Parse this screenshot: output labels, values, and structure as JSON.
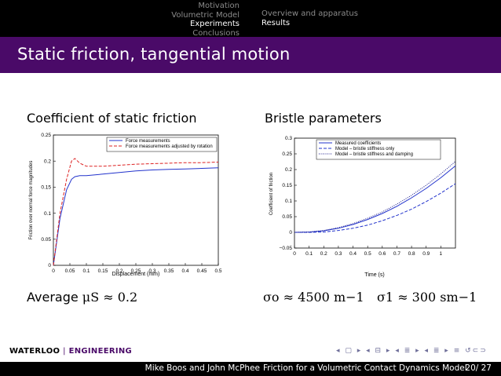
{
  "nav": {
    "sections": [
      "Motivation",
      "Volumetric Model",
      "Experiments",
      "Conclusions"
    ],
    "active_section": 2,
    "subsections": [
      "Overview and apparatus",
      "Results"
    ],
    "active_subsection": 1
  },
  "slide_title": "Static friction, tangential motion",
  "left": {
    "heading": "Coefficient of static friction",
    "result_prefix": "Average",
    "result_formula": "μS ≈ 0.2"
  },
  "right": {
    "heading": "Bristle parameters",
    "result_sigma0": "σo ≈ 4500 m−1",
    "result_sigma1": "σ1 ≈ 300 sm−1"
  },
  "footer": {
    "logo_left": "WATERLOO",
    "logo_sep": "|",
    "logo_right": "ENGINEERING",
    "authors": "Mike Boos and John McPhee",
    "talk_title": "Friction for a Volumetric Contact Dynamics Model",
    "page": "20/ 27"
  },
  "colors": {
    "accent": "#4a0a68",
    "series_blue": "#2233cc",
    "series_red": "#dd2222"
  },
  "chart_data": [
    {
      "type": "line",
      "xlabel": "Displacement (mm)",
      "ylabel": "Friction over normal force magnitudes",
      "xlim": [
        0,
        0.5
      ],
      "ylim": [
        0,
        0.25
      ],
      "xticks": [
        "0",
        "0.05",
        "0.1",
        "0.15",
        "0.2",
        "0.25",
        "0.3",
        "0.35",
        "0.4",
        "0.45",
        "0.5"
      ],
      "yticks": [
        "0",
        "0.05",
        "0.1",
        "0.15",
        "0.2",
        "0.25"
      ],
      "legend_position": "top-right",
      "series": [
        {
          "name": "Force measurements",
          "style": "solid",
          "x": [
            0,
            0.02,
            0.04,
            0.055,
            0.065,
            0.08,
            0.1,
            0.15,
            0.2,
            0.25,
            0.3,
            0.35,
            0.4,
            0.45,
            0.5
          ],
          "y": [
            0,
            0.09,
            0.145,
            0.165,
            0.17,
            0.172,
            0.172,
            0.175,
            0.178,
            0.181,
            0.183,
            0.184,
            0.185,
            0.186,
            0.187
          ]
        },
        {
          "name": "Force measurements adjusted by rotation",
          "style": "dashed",
          "x": [
            0,
            0.02,
            0.04,
            0.055,
            0.065,
            0.08,
            0.1,
            0.15,
            0.2,
            0.25,
            0.3,
            0.35,
            0.4,
            0.45,
            0.5
          ],
          "y": [
            0,
            0.1,
            0.165,
            0.2,
            0.205,
            0.196,
            0.19,
            0.19,
            0.192,
            0.194,
            0.195,
            0.196,
            0.197,
            0.197,
            0.198
          ]
        }
      ]
    },
    {
      "type": "line",
      "xlabel": "Time (s)",
      "ylabel": "Coefficient of friction",
      "xlim": [
        0,
        1.1
      ],
      "ylim": [
        -0.05,
        0.3
      ],
      "xticks": [
        "0",
        "0.1",
        "0.2",
        "0.3",
        "0.4",
        "0.5",
        "0.6",
        "0.7",
        "0.8",
        "0.9",
        "1"
      ],
      "yticks": [
        "−0.05",
        "0",
        "0.05",
        "0.1",
        "0.15",
        "0.2",
        "0.25",
        "0.3"
      ],
      "legend_position": "top-right",
      "series": [
        {
          "name": "Measured coefficients",
          "style": "solid",
          "x": [
            0,
            0.1,
            0.2,
            0.3,
            0.4,
            0.5,
            0.6,
            0.7,
            0.8,
            0.9,
            1.0,
            1.1
          ],
          "y": [
            0,
            0.001,
            0.005,
            0.013,
            0.025,
            0.041,
            0.06,
            0.083,
            0.11,
            0.14,
            0.174,
            0.212
          ]
        },
        {
          "name": "Model – bristle stiffness only",
          "style": "dashed",
          "x": [
            0,
            0.1,
            0.2,
            0.3,
            0.4,
            0.5,
            0.6,
            0.7,
            0.8,
            0.9,
            1.0,
            1.1
          ],
          "y": [
            0,
            0,
            0.001,
            0.006,
            0.013,
            0.023,
            0.037,
            0.054,
            0.074,
            0.098,
            0.125,
            0.155
          ]
        },
        {
          "name": "Model – bristle stiffness and damping",
          "style": "dotted",
          "x": [
            0,
            0.1,
            0.2,
            0.3,
            0.4,
            0.5,
            0.6,
            0.7,
            0.8,
            0.9,
            1.0,
            1.1
          ],
          "y": [
            0,
            0.001,
            0.006,
            0.015,
            0.028,
            0.045,
            0.065,
            0.09,
            0.118,
            0.15,
            0.186,
            0.226
          ]
        }
      ]
    }
  ]
}
